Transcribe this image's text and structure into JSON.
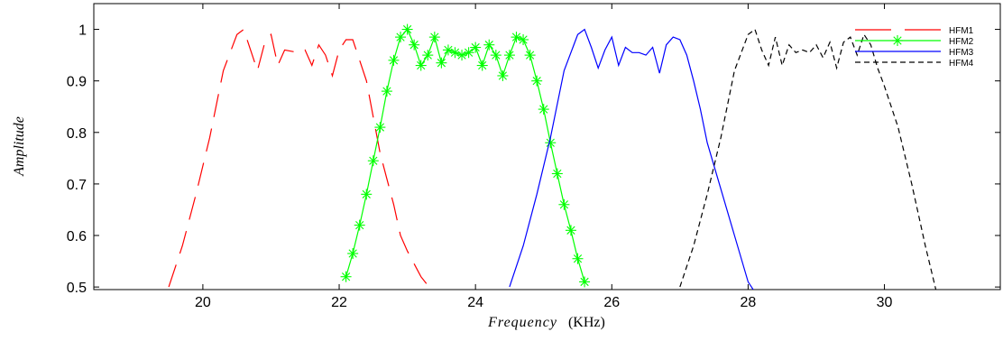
{
  "chart_data": {
    "type": "line",
    "title": "",
    "xlabel": "Frequency",
    "xlabel_unit": "(KHz)",
    "ylabel": "Amplitude",
    "xlim": [
      18.4,
      31.7
    ],
    "ylim": [
      0.495,
      1.05
    ],
    "xticks": [
      20,
      22,
      24,
      26,
      28,
      30
    ],
    "yticks": [
      0.5,
      0.6,
      0.7,
      0.8,
      0.9,
      1
    ],
    "ytick_labels": [
      "0.5",
      "0.6",
      "0.7",
      "0.8",
      "0.9",
      "1"
    ],
    "grid": false,
    "legend_position": "top-right",
    "series": [
      {
        "name": "HFM1",
        "color": "#ff0000",
        "style": "long-dash",
        "marker": "none",
        "x": [
          19.5,
          19.7,
          19.9,
          20.1,
          20.3,
          20.5,
          20.6,
          20.7,
          20.8,
          20.9,
          21.0,
          21.1,
          21.2,
          21.4,
          21.5,
          21.6,
          21.7,
          21.8,
          21.9,
          22.0,
          22.1,
          22.2,
          22.3,
          22.4,
          22.5,
          22.6,
          22.7,
          22.8,
          22.9,
          23.0,
          23.2,
          23.5
        ],
        "y": [
          0.5,
          0.58,
          0.68,
          0.79,
          0.92,
          0.99,
          1.0,
          0.96,
          0.92,
          0.97,
          0.99,
          0.93,
          0.96,
          0.955,
          0.96,
          0.93,
          0.97,
          0.95,
          0.91,
          0.96,
          0.98,
          0.98,
          0.94,
          0.9,
          0.83,
          0.76,
          0.71,
          0.66,
          0.6,
          0.57,
          0.52,
          0.47
        ]
      },
      {
        "name": "HFM2",
        "color": "#00ff00",
        "style": "solid",
        "marker": "asterisk",
        "x": [
          22.1,
          22.2,
          22.3,
          22.4,
          22.5,
          22.6,
          22.7,
          22.8,
          22.9,
          23.0,
          23.1,
          23.2,
          23.3,
          23.4,
          23.5,
          23.6,
          23.7,
          23.8,
          23.9,
          24.0,
          24.1,
          24.2,
          24.3,
          24.4,
          24.5,
          24.6,
          24.7,
          24.8,
          24.9,
          25.0,
          25.1,
          25.2,
          25.3,
          25.4,
          25.5,
          25.6
        ],
        "y": [
          0.52,
          0.565,
          0.62,
          0.68,
          0.745,
          0.81,
          0.88,
          0.94,
          0.985,
          1.0,
          0.97,
          0.93,
          0.95,
          0.985,
          0.935,
          0.96,
          0.955,
          0.95,
          0.955,
          0.965,
          0.93,
          0.97,
          0.95,
          0.91,
          0.95,
          0.985,
          0.98,
          0.95,
          0.9,
          0.845,
          0.78,
          0.72,
          0.66,
          0.61,
          0.555,
          0.51
        ]
      },
      {
        "name": "HFM3",
        "color": "#0000ff",
        "style": "solid",
        "marker": "none",
        "x": [
          24.5,
          24.7,
          24.9,
          25.1,
          25.3,
          25.5,
          25.6,
          25.7,
          25.8,
          25.9,
          26.0,
          26.1,
          26.2,
          26.3,
          26.4,
          26.5,
          26.6,
          26.7,
          26.8,
          26.9,
          27.0,
          27.1,
          27.2,
          27.3,
          27.4,
          27.6,
          27.8,
          28.0,
          28.2
        ],
        "y": [
          0.5,
          0.58,
          0.68,
          0.79,
          0.92,
          0.99,
          1.0,
          0.965,
          0.925,
          0.96,
          0.985,
          0.93,
          0.965,
          0.955,
          0.955,
          0.95,
          0.965,
          0.915,
          0.97,
          0.985,
          0.98,
          0.95,
          0.9,
          0.845,
          0.78,
          0.69,
          0.6,
          0.51,
          0.47
        ]
      },
      {
        "name": "HFM4",
        "color": "#000000",
        "style": "dashed",
        "marker": "none",
        "x": [
          27.0,
          27.2,
          27.4,
          27.6,
          27.8,
          28.0,
          28.1,
          28.2,
          28.3,
          28.4,
          28.5,
          28.6,
          28.7,
          28.8,
          28.9,
          29.0,
          29.1,
          29.2,
          29.3,
          29.4,
          29.5,
          29.6,
          29.7,
          29.8,
          29.9,
          30.0,
          30.2,
          30.4,
          30.6,
          30.8
        ],
        "y": [
          0.5,
          0.58,
          0.68,
          0.79,
          0.92,
          0.99,
          1.0,
          0.96,
          0.93,
          0.985,
          0.93,
          0.97,
          0.955,
          0.96,
          0.955,
          0.97,
          0.945,
          0.975,
          0.925,
          0.975,
          0.985,
          0.95,
          0.99,
          0.97,
          0.925,
          0.89,
          0.81,
          0.7,
          0.58,
          0.47
        ]
      }
    ]
  }
}
